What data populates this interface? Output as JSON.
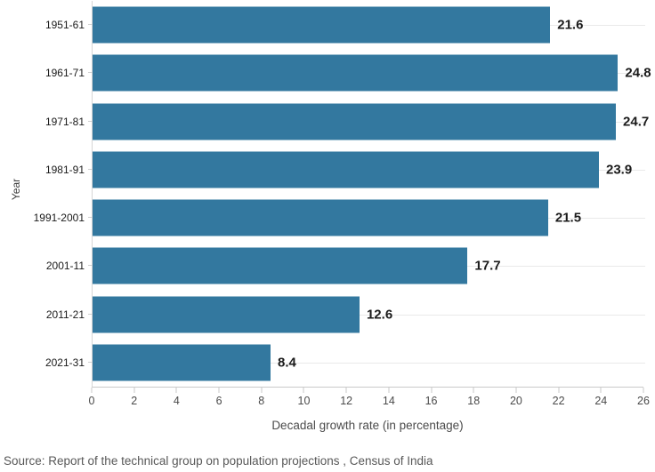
{
  "chart_data": {
    "type": "bar",
    "orientation": "horizontal",
    "categories": [
      "1951-61",
      "1961-71",
      "1971-81",
      "1981-91",
      "1991-2001",
      "2001-11",
      "2011-21",
      "2021-31"
    ],
    "values": [
      21.6,
      24.8,
      24.7,
      23.9,
      21.5,
      17.7,
      12.6,
      8.4
    ],
    "value_labels": [
      "21.6",
      "24.8",
      "24.7",
      "23.9",
      "21.5",
      "17.7",
      "12.6",
      "8.4"
    ],
    "xlabel": "Decadal growth rate (in percentage)",
    "ylabel": "Year",
    "xlim": [
      0,
      26
    ],
    "xticks": [
      0,
      2,
      4,
      6,
      8,
      10,
      12,
      14,
      16,
      18,
      20,
      22,
      24,
      26
    ],
    "grid": "horizontal-row-gridlines",
    "legend": "none",
    "bar_color": "#33789f"
  },
  "source_note": "Source: Report of the technical group on population projections , Census of India"
}
